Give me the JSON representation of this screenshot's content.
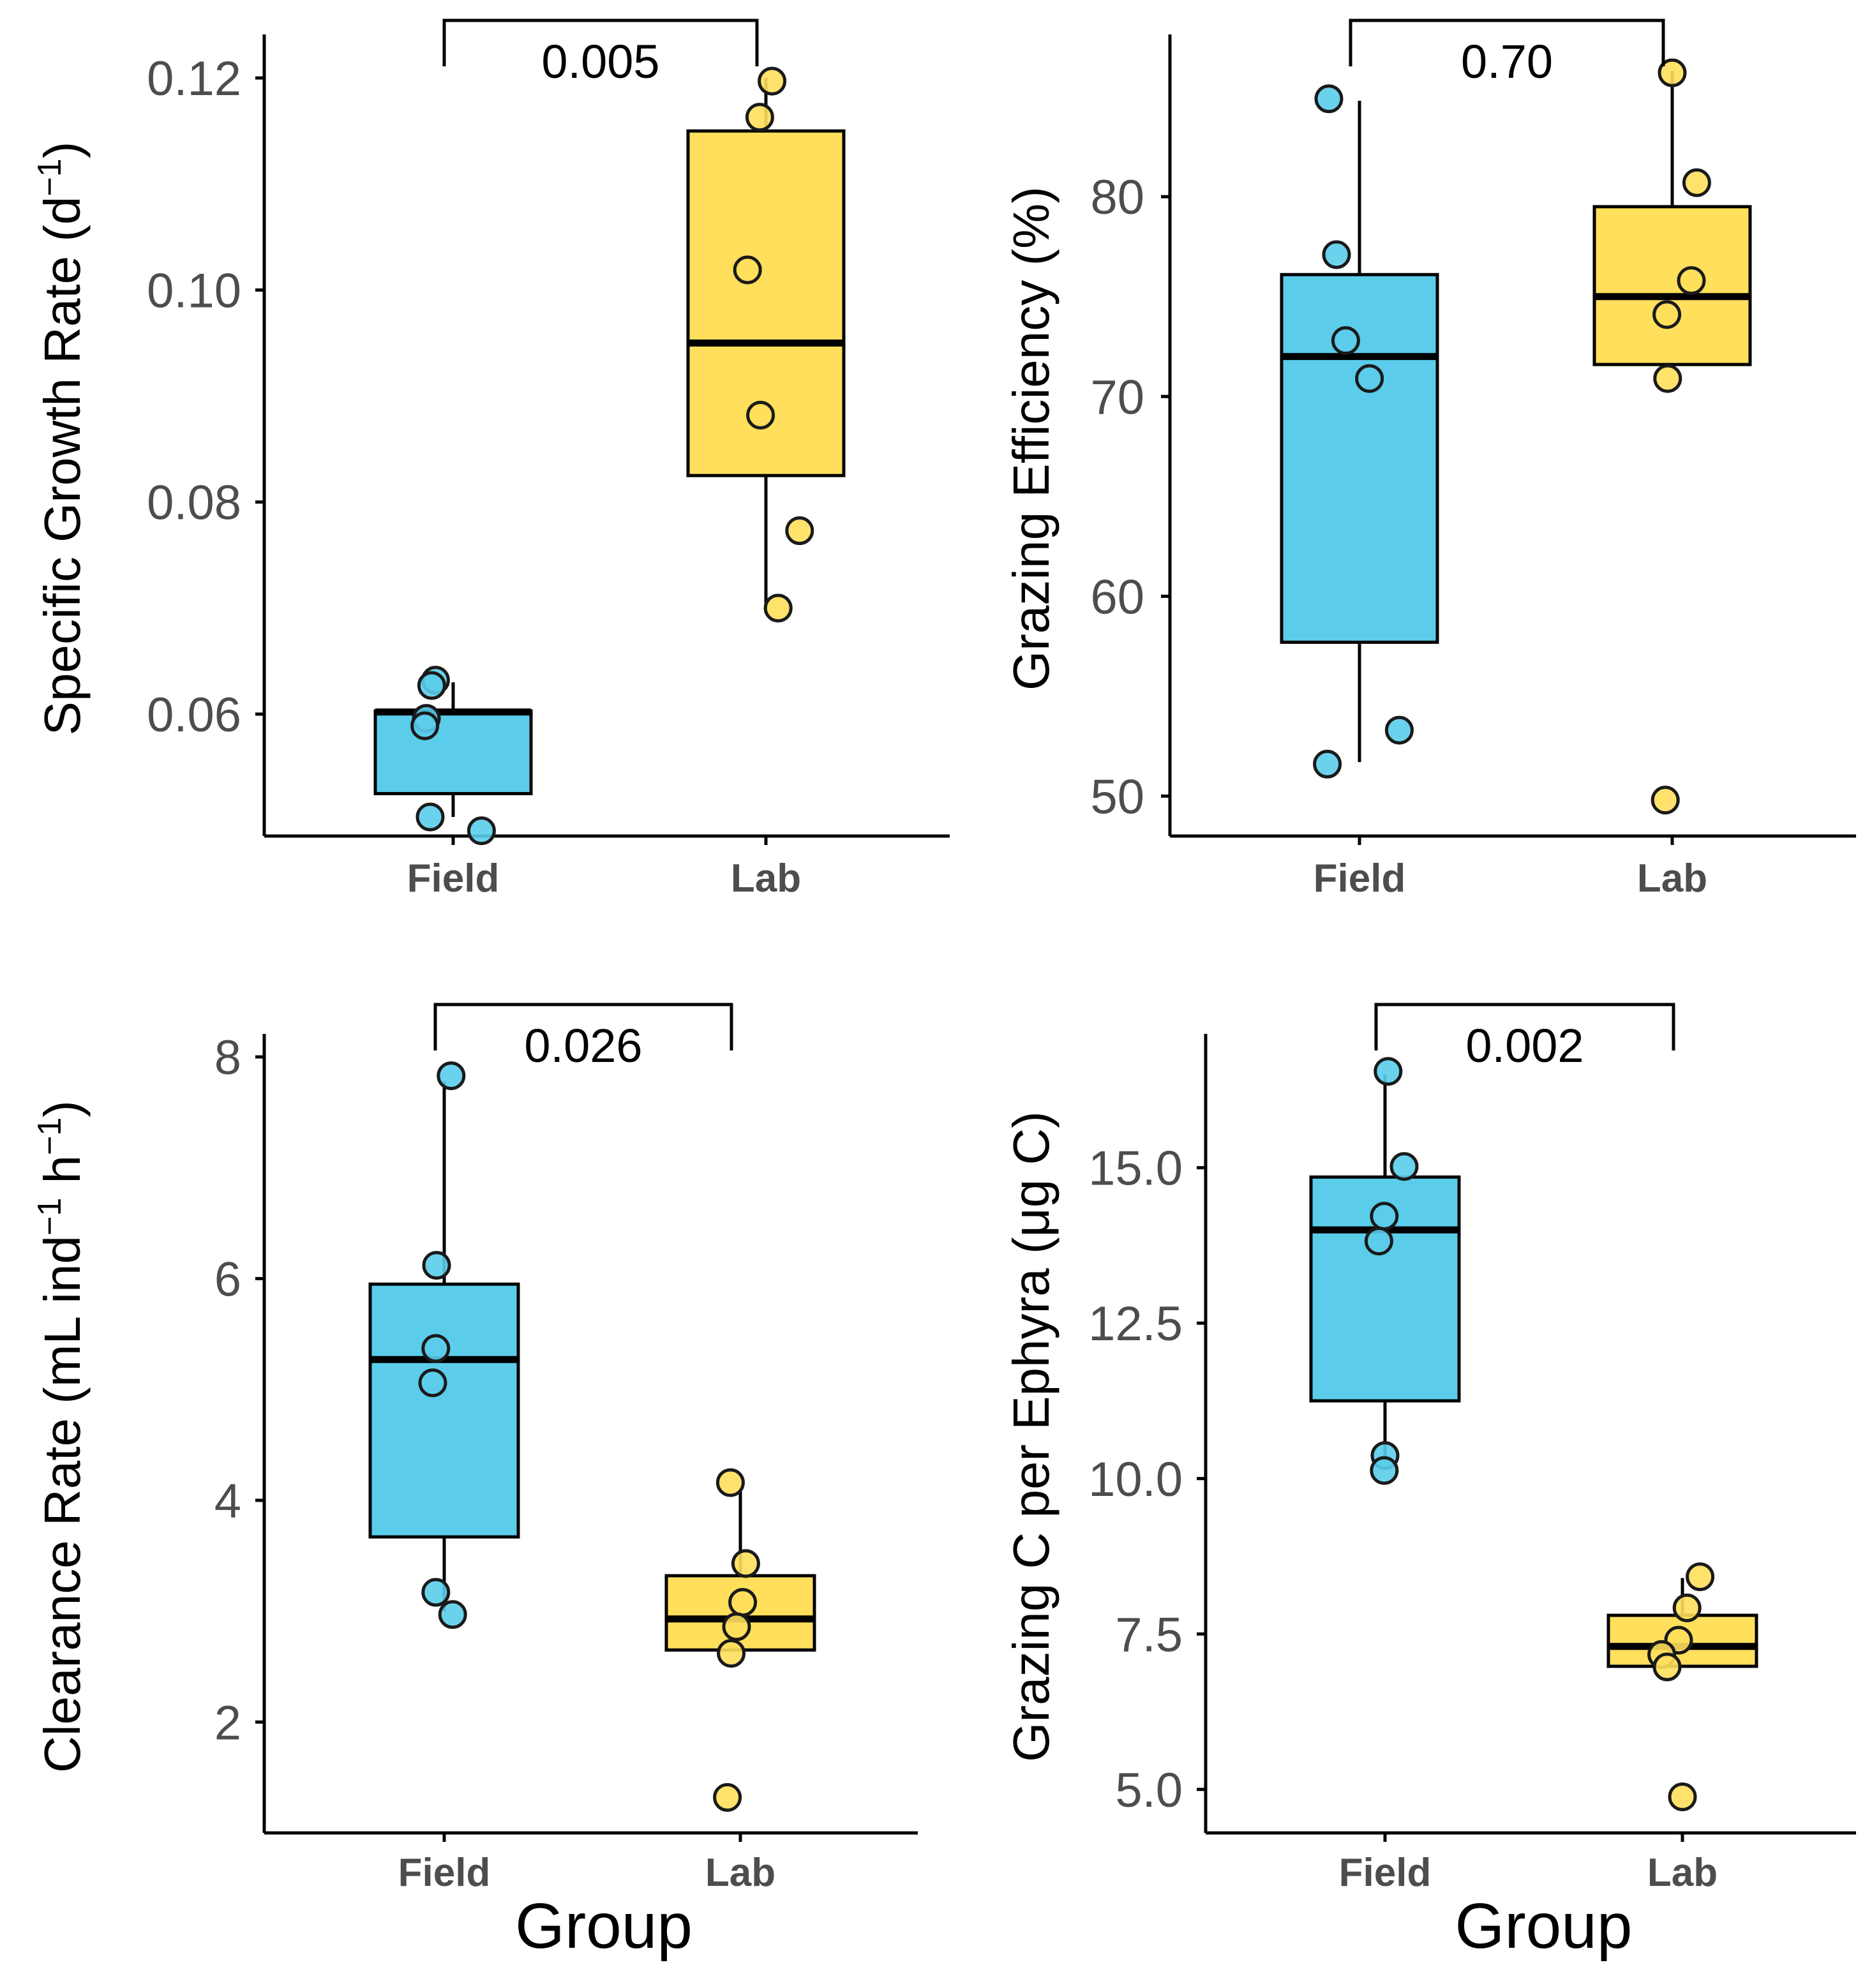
{
  "colors": {
    "field": "#5bcdeb",
    "lab": "#ffdf5c",
    "stroke": "#000000"
  },
  "figure": {
    "x_axis_title": "Group"
  },
  "chart_data": [
    {
      "id": "growth",
      "type": "box",
      "categories": [
        "Field",
        "Lab"
      ],
      "ylabel": "Specific Growth Rate (d",
      "ylabel_sup": "−1",
      "ylabel_tail": ")",
      "ylim": [
        0.0485,
        0.1235
      ],
      "yticks": [
        0.06,
        0.08,
        0.1,
        0.12
      ],
      "ytick_labels": [
        "0.06",
        "0.08",
        "0.10",
        "0.12"
      ],
      "xlabel": "",
      "pvalue": "0.005",
      "boxes": [
        {
          "group": "Field",
          "q1": 0.0525,
          "median": 0.0602,
          "q3": 0.0603,
          "whisker_low": 0.0503,
          "whisker_high": 0.063
        },
        {
          "group": "Lab",
          "q1": 0.0825,
          "median": 0.095,
          "q3": 0.115,
          "whisker_low": 0.07,
          "whisker_high": 0.12
        }
      ],
      "points": [
        {
          "group": "Field",
          "y": 0.0632,
          "j": -0.23
        },
        {
          "group": "Field",
          "y": 0.0627,
          "j": -0.28
        },
        {
          "group": "Field",
          "y": 0.0596,
          "j": -0.35
        },
        {
          "group": "Field",
          "y": 0.0589,
          "j": -0.37
        },
        {
          "group": "Field",
          "y": 0.0503,
          "j": -0.3
        },
        {
          "group": "Field",
          "y": 0.049,
          "j": 0.37
        },
        {
          "group": "Lab",
          "y": 0.1197,
          "j": 0.08
        },
        {
          "group": "Lab",
          "y": 0.1163,
          "j": -0.08
        },
        {
          "group": "Lab",
          "y": 0.1019,
          "j": -0.24
        },
        {
          "group": "Lab",
          "y": 0.0882,
          "j": -0.07
        },
        {
          "group": "Lab",
          "y": 0.0773,
          "j": 0.44
        },
        {
          "group": "Lab",
          "y": 0.07,
          "j": 0.16
        }
      ]
    },
    {
      "id": "efficiency",
      "type": "box",
      "categories": [
        "Field",
        "Lab"
      ],
      "ylabel": "Grazing Efficiency (%)",
      "ylabel_sup": "",
      "ylabel_tail": "",
      "ylim": [
        48,
        87.8
      ],
      "yticks": [
        50,
        60,
        70,
        80
      ],
      "ytick_labels": [
        "50",
        "60",
        "70",
        "80"
      ],
      "xlabel": "",
      "pvalue": "0.70",
      "boxes": [
        {
          "group": "Field",
          "q1": 57.7,
          "median": 72,
          "q3": 76.1,
          "whisker_low": 51.7,
          "whisker_high": 84.8
        },
        {
          "group": "Lab",
          "q1": 71.6,
          "median": 75,
          "q3": 79.5,
          "whisker_low": 71.6,
          "whisker_high": 86.3
        }
      ],
      "points": [
        {
          "group": "Field",
          "y": 84.9,
          "j": -0.4
        },
        {
          "group": "Field",
          "y": 77.1,
          "j": -0.3
        },
        {
          "group": "Field",
          "y": 72.8,
          "j": -0.18
        },
        {
          "group": "Field",
          "y": 70.9,
          "j": 0.13
        },
        {
          "group": "Field",
          "y": 53.3,
          "j": 0.52
        },
        {
          "group": "Field",
          "y": 51.6,
          "j": -0.42
        },
        {
          "group": "Lab",
          "y": 86.2,
          "j": 0.0
        },
        {
          "group": "Lab",
          "y": 80.7,
          "j": 0.32
        },
        {
          "group": "Lab",
          "y": 75.8,
          "j": 0.25
        },
        {
          "group": "Lab",
          "y": 74.1,
          "j": -0.07
        },
        {
          "group": "Lab",
          "y": 70.9,
          "j": -0.06
        },
        {
          "group": "Lab",
          "y": 49.8,
          "j": -0.09
        }
      ]
    },
    {
      "id": "clearance",
      "type": "box",
      "categories": [
        "Field",
        "Lab"
      ],
      "ylabel": "Clearance Rate (mL ind",
      "ylabel_sup": "−1",
      "ylabel_mid": " h",
      "ylabel_sup2": "−1",
      "ylabel_tail": ")",
      "ylim": [
        1.0,
        8.15
      ],
      "yticks": [
        2,
        4,
        6,
        8
      ],
      "ytick_labels": [
        "2",
        "4",
        "6",
        "8"
      ],
      "xlabel": "Group",
      "pvalue": "0.026",
      "boxes": [
        {
          "group": "Field",
          "q1": 3.67,
          "median": 5.27,
          "q3": 5.95,
          "whisker_low": 3.0,
          "whisker_high": 7.78
        },
        {
          "group": "Lab",
          "q1": 2.65,
          "median": 2.93,
          "q3": 3.32,
          "whisker_low": 2.65,
          "whisker_high": 4.1
        }
      ],
      "points": [
        {
          "group": "Field",
          "y": 7.83,
          "j": 0.09
        },
        {
          "group": "Field",
          "y": 6.12,
          "j": -0.1
        },
        {
          "group": "Field",
          "y": 5.37,
          "j": -0.11
        },
        {
          "group": "Field",
          "y": 5.06,
          "j": -0.15
        },
        {
          "group": "Field",
          "y": 3.17,
          "j": -0.11
        },
        {
          "group": "Field",
          "y": 2.97,
          "j": 0.11
        },
        {
          "group": "Lab",
          "y": 4.16,
          "j": -0.13
        },
        {
          "group": "Lab",
          "y": 3.43,
          "j": 0.07
        },
        {
          "group": "Lab",
          "y": 3.08,
          "j": 0.03
        },
        {
          "group": "Lab",
          "y": 2.86,
          "j": -0.05
        },
        {
          "group": "Lab",
          "y": 2.62,
          "j": -0.12
        },
        {
          "group": "Lab",
          "y": 1.32,
          "j": -0.17
        }
      ]
    },
    {
      "id": "grazing_c",
      "type": "box",
      "categories": [
        "Field",
        "Lab"
      ],
      "ylabel": "Grazing C per Ephyra (μg C)",
      "ylabel_sup": "",
      "ylabel_tail": "",
      "ylim": [
        4.3,
        17.05
      ],
      "yticks": [
        5.0,
        7.5,
        10.0,
        12.5,
        15.0
      ],
      "ytick_labels": [
        "5.0",
        "7.5",
        "10.0",
        "12.5",
        "15.0"
      ],
      "xlabel": "Group",
      "pvalue": "0.002",
      "boxes": [
        {
          "group": "Field",
          "q1": 11.25,
          "median": 14.0,
          "q3": 14.85,
          "whisker_low": 10.3,
          "whisker_high": 16.5
        },
        {
          "group": "Lab",
          "q1": 6.98,
          "median": 7.3,
          "q3": 7.8,
          "whisker_low": 6.98,
          "whisker_high": 8.4
        }
      ],
      "points": [
        {
          "group": "Field",
          "y": 16.55,
          "j": 0.04
        },
        {
          "group": "Field",
          "y": 15.02,
          "j": 0.25
        },
        {
          "group": "Field",
          "y": 14.22,
          "j": -0.01
        },
        {
          "group": "Field",
          "y": 13.82,
          "j": -0.08
        },
        {
          "group": "Field",
          "y": 10.37,
          "j": 0.0
        },
        {
          "group": "Field",
          "y": 10.13,
          "j": -0.01
        },
        {
          "group": "Lab",
          "y": 8.42,
          "j": 0.23
        },
        {
          "group": "Lab",
          "y": 7.92,
          "j": 0.06
        },
        {
          "group": "Lab",
          "y": 7.4,
          "j": -0.05
        },
        {
          "group": "Lab",
          "y": 7.17,
          "j": -0.27
        },
        {
          "group": "Lab",
          "y": 6.97,
          "j": -0.2
        },
        {
          "group": "Lab",
          "y": 4.88,
          "j": 0.0
        }
      ]
    }
  ]
}
